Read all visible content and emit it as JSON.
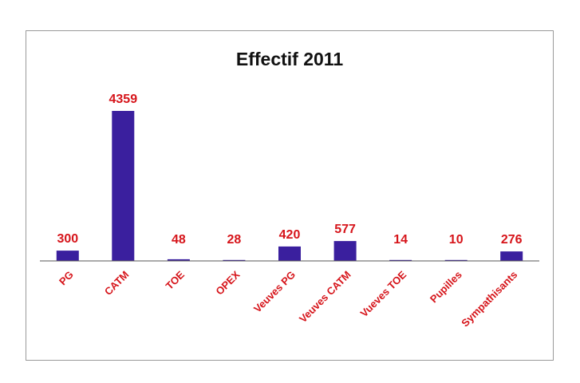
{
  "colors": {
    "bar": "#3a1f9e",
    "label": "#d6141a",
    "axis": "#555555",
    "title": "#111111"
  },
  "chart_data": {
    "type": "bar",
    "title": "Effectif 2011",
    "xlabel": "",
    "ylabel": "",
    "categories": [
      "PG",
      "CATM",
      "TOE",
      "OPEX",
      "Veuves PG",
      "Veuves CATM",
      "Vueves TOE",
      "Pupilles",
      "Sympathisants"
    ],
    "values": [
      300,
      4359,
      48,
      28,
      420,
      577,
      14,
      10,
      276
    ],
    "value_labels": [
      "300",
      "4359",
      "48",
      "28",
      "420",
      "577",
      "14",
      "10",
      "276"
    ],
    "ylim": [
      0,
      4359
    ],
    "grid": false,
    "legend": "none"
  }
}
